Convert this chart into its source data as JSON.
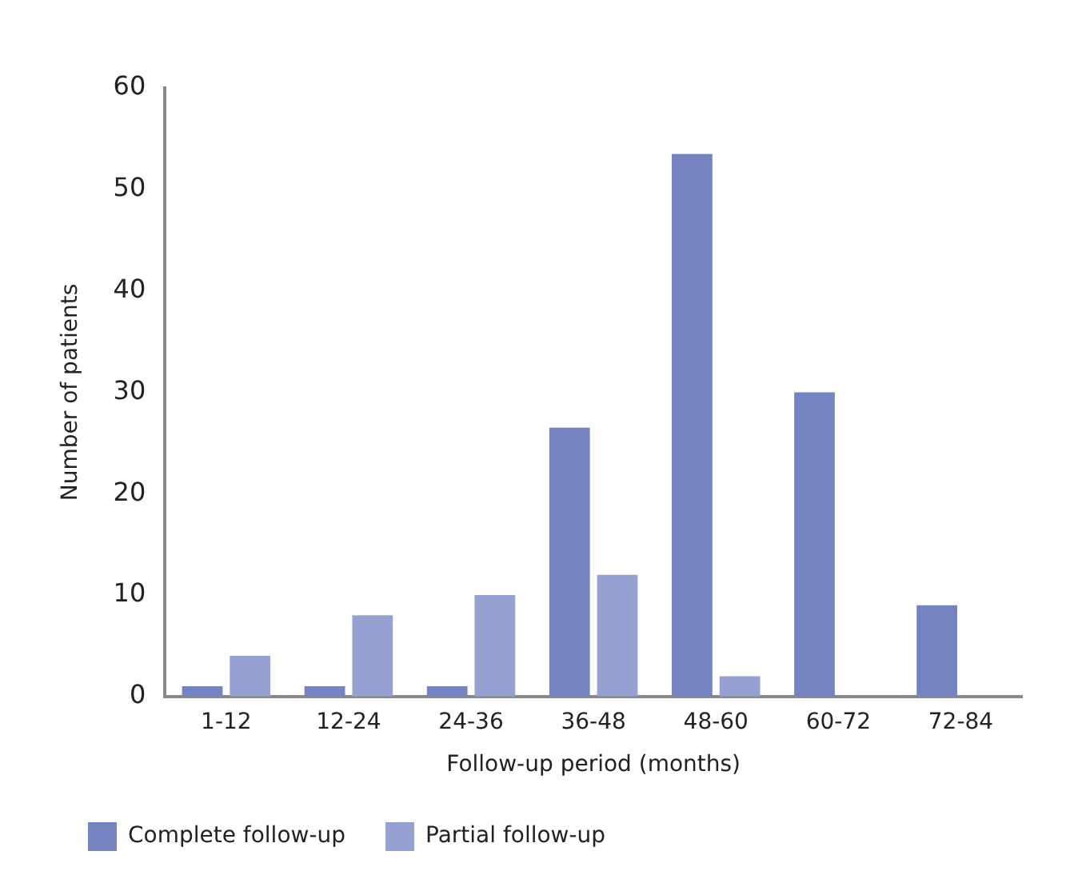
{
  "chart_data": {
    "type": "bar",
    "xlabel": "Follow-up period (months)",
    "ylabel": "Number of patients",
    "categories": [
      "1-12",
      "12-24",
      "24-36",
      "36-48",
      "48-60",
      "60-72",
      "72-84"
    ],
    "series": [
      {
        "name": "Complete follow-up",
        "color": "#7384c0",
        "values": [
          1,
          1,
          1,
          26.5,
          53.5,
          30,
          9
        ]
      },
      {
        "name": "Partial follow-up",
        "color": "#96a1d2",
        "values": [
          4,
          8,
          10,
          12,
          2,
          0,
          0
        ]
      }
    ],
    "ylim": [
      0,
      60
    ],
    "yticks": [
      0,
      10,
      20,
      30,
      40,
      50,
      60
    ],
    "grid": false,
    "legend": "bottom left"
  }
}
